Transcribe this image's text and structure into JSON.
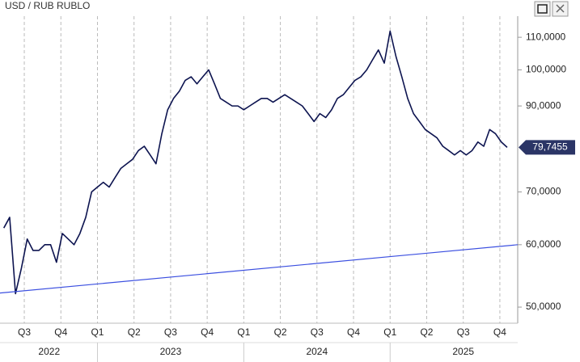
{
  "chart_data": {
    "type": "line",
    "title": "USD / RUB RUBLO",
    "log_scale": true,
    "grid": true,
    "xlim": [
      2022.334,
      2025.872
    ],
    "xticks": [
      {
        "value": 2022.5,
        "label": "Q3"
      },
      {
        "value": 2022.75,
        "label": "Q4"
      },
      {
        "value": 2023.0,
        "label": "Q1"
      },
      {
        "value": 2023.25,
        "label": "Q2"
      },
      {
        "value": 2023.5,
        "label": "Q3"
      },
      {
        "value": 2023.75,
        "label": "Q4"
      },
      {
        "value": 2024.0,
        "label": "Q1"
      },
      {
        "value": 2024.25,
        "label": "Q2"
      },
      {
        "value": 2024.5,
        "label": "Q3"
      },
      {
        "value": 2024.75,
        "label": "Q4"
      },
      {
        "value": 2025.0,
        "label": "Q1"
      },
      {
        "value": 2025.25,
        "label": "Q2"
      },
      {
        "value": 2025.5,
        "label": "Q3"
      },
      {
        "value": 2025.75,
        "label": "Q4"
      }
    ],
    "xticks2": [
      {
        "value": 2022.67,
        "label": "2022"
      },
      {
        "value": 2023.5,
        "label": "2023"
      },
      {
        "value": 2024.5,
        "label": "2024"
      },
      {
        "value": 2025.5,
        "label": "2025"
      }
    ],
    "ylim": [
      47.7,
      117
    ],
    "yticks": [
      {
        "value": 50,
        "label": "50,0000"
      },
      {
        "value": 60,
        "label": "60,0000"
      },
      {
        "value": 70,
        "label": "70,0000"
      },
      {
        "value": 90,
        "label": "90,0000"
      },
      {
        "value": 100,
        "label": "100,0000"
      },
      {
        "value": 110,
        "label": "110,0000"
      }
    ],
    "series": [
      {
        "color": "#0d1450",
        "x": [
          2022.36,
          2022.4,
          2022.44,
          2022.48,
          2022.52,
          2022.56,
          2022.6,
          2022.64,
          2022.68,
          2022.72,
          2022.76,
          2022.8,
          2022.84,
          2022.88,
          2022.92,
          2022.96,
          2023.0,
          2023.04,
          2023.08,
          2023.12,
          2023.16,
          2023.2,
          2023.24,
          2023.28,
          2023.32,
          2023.36,
          2023.4,
          2023.44,
          2023.48,
          2023.52,
          2023.56,
          2023.6,
          2023.64,
          2023.68,
          2023.72,
          2023.76,
          2023.8,
          2023.84,
          2023.88,
          2023.92,
          2023.96,
          2024.0,
          2024.04,
          2024.08,
          2024.12,
          2024.16,
          2024.2,
          2024.24,
          2024.28,
          2024.32,
          2024.36,
          2024.4,
          2024.44,
          2024.48,
          2024.52,
          2024.56,
          2024.6,
          2024.64,
          2024.68,
          2024.72,
          2024.76,
          2024.8,
          2024.84,
          2024.88,
          2024.92,
          2024.96,
          2025.0,
          2025.04,
          2025.08,
          2025.12,
          2025.16,
          2025.2,
          2025.24,
          2025.28,
          2025.32,
          2025.36,
          2025.4,
          2025.44,
          2025.48,
          2025.52,
          2025.56,
          2025.6,
          2025.64,
          2025.68,
          2025.72,
          2025.76,
          2025.8
        ],
        "values": [
          63,
          65,
          52,
          56,
          61,
          59,
          59,
          60,
          60,
          57,
          62,
          61,
          60,
          62,
          65,
          70,
          71,
          72,
          71,
          73,
          75,
          76,
          77,
          79,
          80,
          78,
          76,
          83,
          89,
          92,
          94,
          97,
          98,
          96,
          98,
          100,
          96,
          92,
          91,
          90,
          90,
          89,
          90,
          91,
          92,
          92,
          91,
          92,
          93,
          92,
          91,
          90,
          88,
          86,
          88,
          87,
          89,
          92,
          93,
          95,
          97,
          98,
          100,
          103,
          106,
          102,
          112,
          104,
          98,
          92,
          88,
          86,
          84,
          83,
          82,
          80,
          79,
          78,
          79,
          78,
          79,
          81,
          80,
          84,
          83,
          81,
          79.7455
        ],
        "last_label": "79,7455"
      },
      {
        "color": "#3b4fe0",
        "x": [
          2022.334,
          2025.872
        ],
        "values": [
          52.1,
          60
        ]
      }
    ]
  }
}
